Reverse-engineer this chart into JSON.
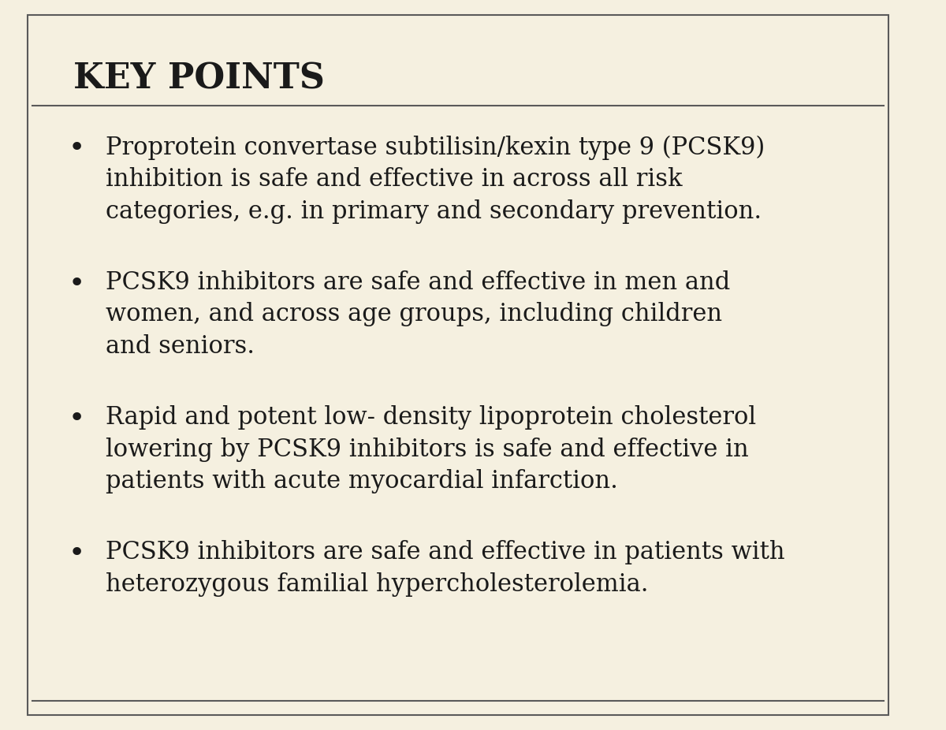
{
  "background_color": "#f5f0e0",
  "border_color": "#5a5a5a",
  "title": "KEY POINTS",
  "title_fontsize": 32,
  "title_color": "#1a1a1a",
  "title_font_weight": "bold",
  "bullet_color": "#1a1a1a",
  "text_color": "#1a1a1a",
  "text_fontsize": 22,
  "line_color": "#5a5a5a",
  "line_width": 1.5,
  "bullet_points": [
    "Proprotein convertase subtilisin/kexin type 9 (PCSK9)\ninhibition is safe and effective in across all risk\ncategories, e.g. in primary and secondary prevention.",
    "PCSK9 inhibitors are safe and effective in men and\nwomen, and across age groups, including children\nand seniors.",
    "Rapid and potent low- density lipoprotein cholesterol\nlowering by PCSK9 inhibitors is safe and effective in\npatients with acute myocardial infarction.",
    "PCSK9 inhibitors are safe and effective in patients with\nheterozygous familial hypercholesterolemia."
  ],
  "figsize": [
    12.0,
    9.26
  ],
  "dpi": 100
}
